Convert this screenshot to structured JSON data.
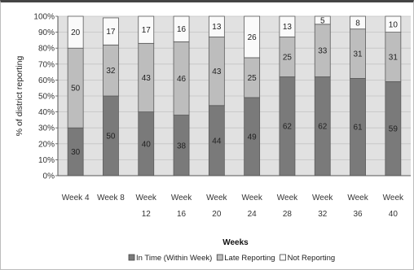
{
  "chart_data": {
    "type": "bar",
    "stacked": true,
    "percent": true,
    "xlabel": "Weeks",
    "ylabel": "% of district reporting",
    "ylim": [
      0,
      100
    ],
    "yticks": [
      "0%",
      "10%",
      "20%",
      "30%",
      "40%",
      "50%",
      "60%",
      "70%",
      "80%",
      "90%",
      "100%"
    ],
    "categories": [
      [
        "Week 4"
      ],
      [
        "Week 8"
      ],
      [
        "Week",
        "12"
      ],
      [
        "Week",
        "16"
      ],
      [
        "Week",
        "20"
      ],
      [
        "Week",
        "24"
      ],
      [
        "Week",
        "28"
      ],
      [
        "Week",
        "32"
      ],
      [
        "Week",
        "36"
      ],
      [
        "Week",
        "40"
      ]
    ],
    "series": [
      {
        "name": "In Time (Within Week)",
        "color": "#7a7a7a",
        "values": [
          30,
          50,
          40,
          38,
          44,
          49,
          62,
          62,
          61,
          59
        ]
      },
      {
        "name": "Late Reporting",
        "color": "#bdbdbd",
        "values": [
          50,
          32,
          43,
          46,
          43,
          25,
          25,
          33,
          31,
          31
        ]
      },
      {
        "name": "Not Reporting",
        "color": "#fafafa",
        "values": [
          20,
          17,
          17,
          16,
          13,
          26,
          13,
          5,
          8,
          10
        ]
      }
    ],
    "grid": true,
    "legend_position": "bottom"
  }
}
